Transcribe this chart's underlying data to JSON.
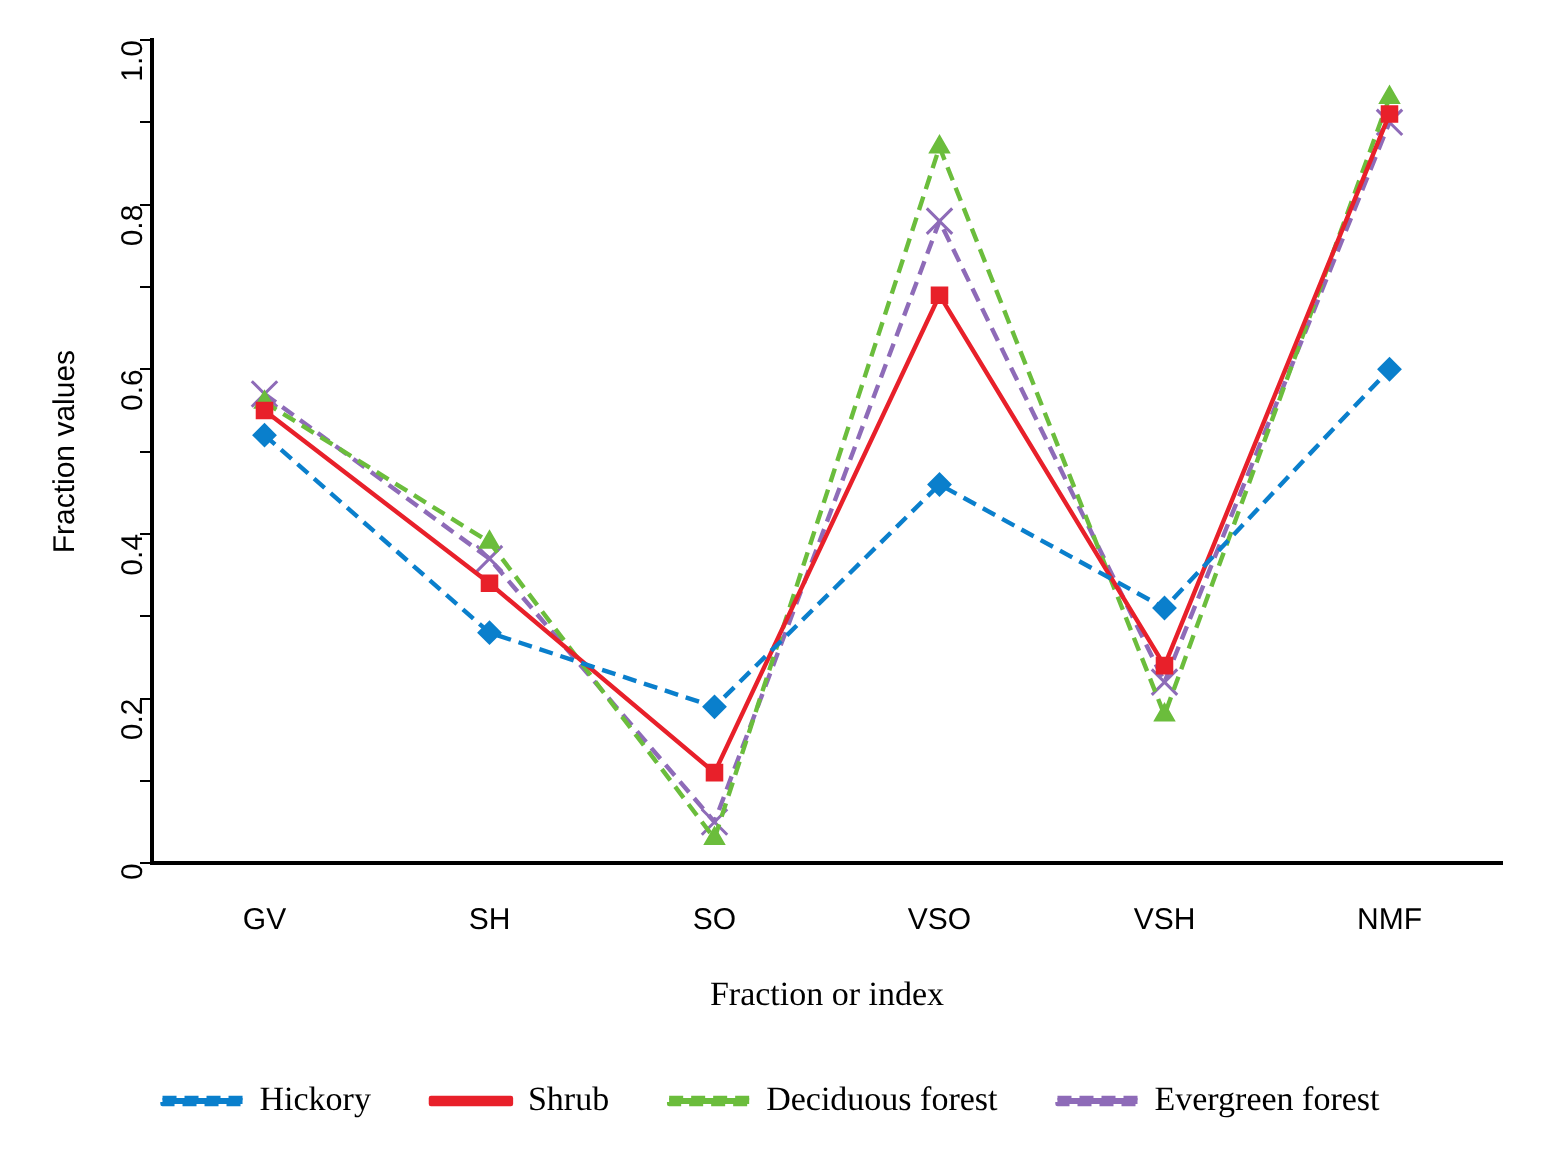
{
  "chart_data": {
    "type": "line",
    "xlabel": "Fraction or index",
    "ylabel": "Fraction values",
    "categories": [
      "GV",
      "SH",
      "SO",
      "VSO",
      "VSH",
      "NMF"
    ],
    "ylim": [
      0,
      1
    ],
    "yticks": [
      {
        "value": 0,
        "label": "0"
      },
      {
        "value": 0.1,
        "label": null
      },
      {
        "value": 0.2,
        "label": "0.2"
      },
      {
        "value": 0.3,
        "label": null
      },
      {
        "value": 0.4,
        "label": "0.4"
      },
      {
        "value": 0.5,
        "label": null
      },
      {
        "value": 0.6,
        "label": "0.6"
      },
      {
        "value": 0.7,
        "label": null
      },
      {
        "value": 0.8,
        "label": "0.8"
      },
      {
        "value": 0.9,
        "label": null
      },
      {
        "value": 1,
        "label": "1.0"
      }
    ],
    "grid": false,
    "legend": "bottom",
    "series": [
      {
        "name": "Hickory",
        "color": "#0a7fcc",
        "marker": "diamond",
        "line_style": "dashed",
        "values": [
          0.52,
          0.28,
          0.19,
          0.46,
          0.31,
          0.6
        ]
      },
      {
        "name": "Shrub",
        "color": "#e8202a",
        "marker": "square",
        "line_style": "solid",
        "values": [
          0.55,
          0.34,
          0.11,
          0.69,
          0.24,
          0.91
        ]
      },
      {
        "name": "Deciduous forest",
        "color": "#6bbd3c",
        "marker": "triangle",
        "line_style": "dashed",
        "values": [
          0.56,
          0.39,
          0.03,
          0.87,
          0.18,
          0.93
        ]
      },
      {
        "name": "Evergreen forest",
        "color": "#8e6bb8",
        "marker": "cross",
        "line_style": "dashed",
        "values": [
          0.57,
          0.37,
          0.05,
          0.78,
          0.22,
          0.9
        ]
      }
    ]
  }
}
